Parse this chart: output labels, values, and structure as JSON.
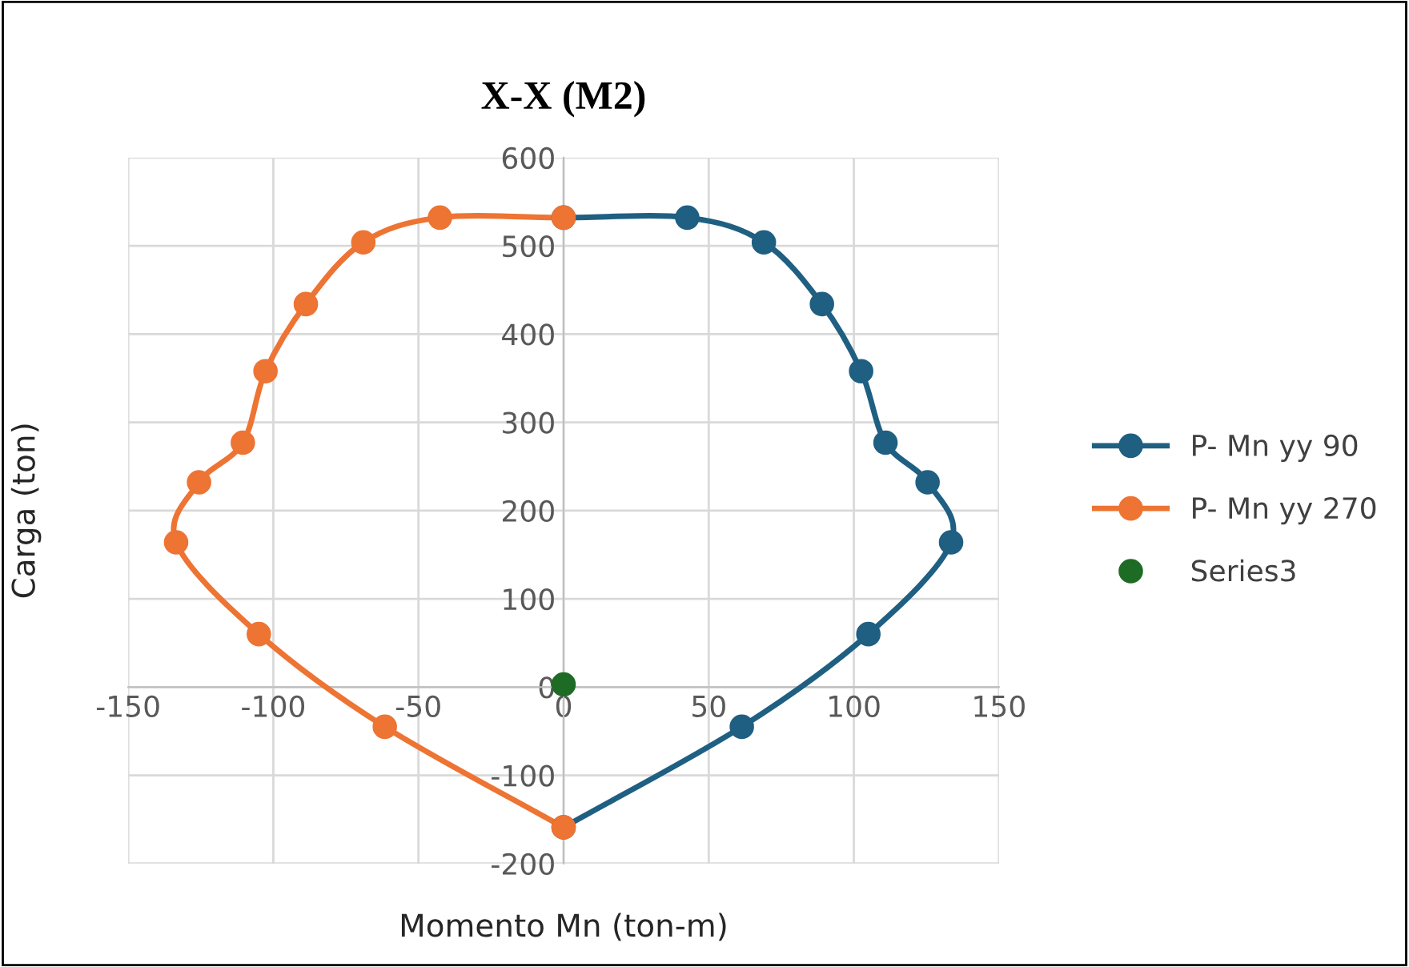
{
  "chart_data": {
    "type": "line",
    "title": "X-X (M2)",
    "xlabel": "Momento Mn (ton-m)",
    "ylabel": "Carga (ton)",
    "xlim": [
      -150,
      150
    ],
    "xticks": [
      -150,
      -100,
      -50,
      0,
      50,
      100,
      150
    ],
    "ylim": [
      -200,
      600
    ],
    "yticks": [
      -200,
      -100,
      0,
      100,
      200,
      300,
      400,
      500,
      600
    ],
    "grid": true,
    "legend": "right",
    "marker": "circle",
    "line_style": "solid",
    "series": [
      {
        "name": "P- Mn yy 90",
        "color": "#1f5f82",
        "x": [
          0,
          42.6,
          69,
          89,
          102.5,
          110.9,
          125.4,
          133.5,
          105,
          61.4,
          0
        ],
        "values": [
          532,
          532,
          504,
          434,
          358,
          277,
          232,
          164,
          60,
          -45,
          -159
        ]
      },
      {
        "name": "P- Mn yy 270",
        "color": "#ed7433",
        "x": [
          0,
          -42.6,
          -69,
          -88.8,
          -102.7,
          -110.5,
          -125.6,
          -133.5,
          -105,
          -61.6,
          0
        ],
        "values": [
          532,
          532,
          504,
          434,
          358,
          277,
          232,
          164,
          60,
          -45,
          -159
        ]
      },
      {
        "name": "Series3",
        "color": "#1e6b26",
        "type": "scatter",
        "x": [
          0
        ],
        "values": [
          3
        ]
      }
    ]
  }
}
